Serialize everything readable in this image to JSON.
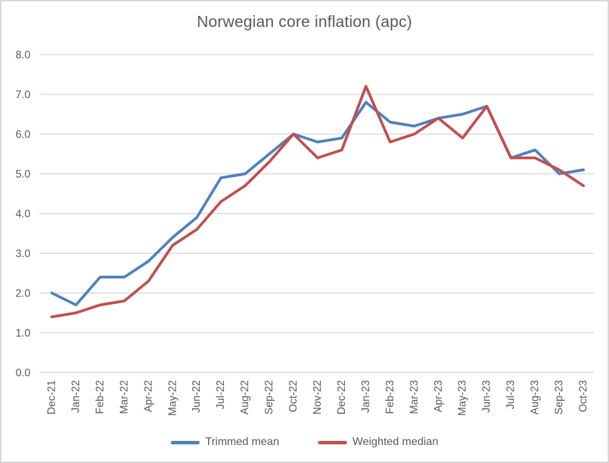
{
  "chart_data": {
    "type": "line",
    "title": "Norwegian core inflation (apc)",
    "categories": [
      "Dec-21",
      "Jan-22",
      "Feb-22",
      "Mar-22",
      "Apr-22",
      "May-22",
      "Jun-22",
      "Jul-22",
      "Aug-22",
      "Sep-22",
      "Oct-22",
      "Nov-22",
      "Dec-22",
      "Jan-23",
      "Feb-23",
      "Mar-23",
      "Apr-23",
      "May-23",
      "Jun-23",
      "Jul-23",
      "Aug-23",
      "Sep-23",
      "Oct-23"
    ],
    "series": [
      {
        "name": "Trimmed mean",
        "color": "#4F81BD",
        "values": [
          2.0,
          1.7,
          2.4,
          2.4,
          2.8,
          3.4,
          3.9,
          4.9,
          5.0,
          5.5,
          6.0,
          5.8,
          5.9,
          6.8,
          6.3,
          6.2,
          6.4,
          6.5,
          6.7,
          5.4,
          5.6,
          5.0,
          5.1
        ]
      },
      {
        "name": "Weighted median",
        "color": "#C0504D",
        "values": [
          1.4,
          1.5,
          1.7,
          1.8,
          2.3,
          3.2,
          3.6,
          4.3,
          4.7,
          5.3,
          6.0,
          5.4,
          5.6,
          7.2,
          5.8,
          6.0,
          6.4,
          5.9,
          6.7,
          5.4,
          5.4,
          5.1,
          4.7
        ]
      }
    ],
    "xlabel": "",
    "ylabel": "",
    "ylim": [
      0,
      8
    ],
    "y_ticks": [
      "0.0",
      "1.0",
      "2.0",
      "3.0",
      "4.0",
      "5.0",
      "6.0",
      "7.0",
      "8.0"
    ],
    "grid": true,
    "gridline_color": "#d9d9d9",
    "text_color": "#595959",
    "legend_position": "bottom"
  }
}
